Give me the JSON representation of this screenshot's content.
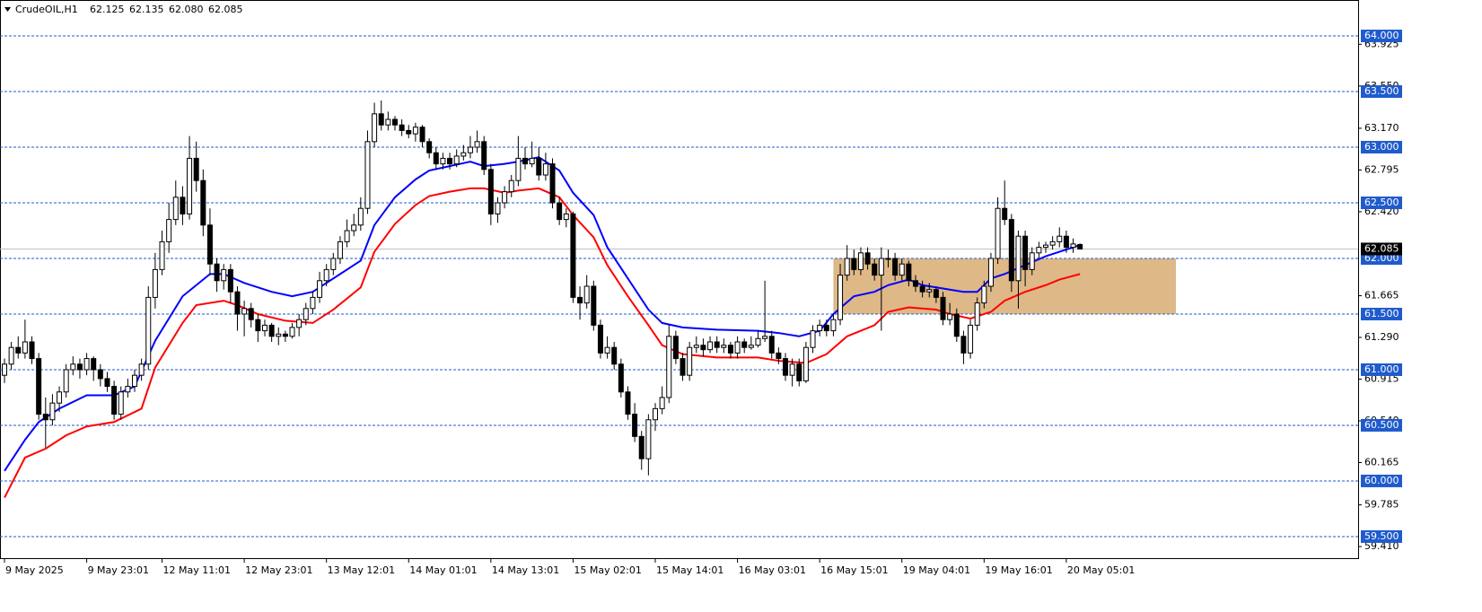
{
  "chart_data": {
    "type": "candlestick",
    "title": "CrudeOIL,H1",
    "title_values": [
      "62.125",
      "62.135",
      "62.080",
      "62.085"
    ],
    "up_color": "#ffffff",
    "down_color": "#000000",
    "candles": [
      [
        60.95,
        61.1,
        60.88,
        61.05
      ],
      [
        61.05,
        61.25,
        61.0,
        61.2
      ],
      [
        61.2,
        61.3,
        61.1,
        61.15
      ],
      [
        61.15,
        61.45,
        61.1,
        61.25
      ],
      [
        61.25,
        61.3,
        61.05,
        61.1
      ],
      [
        61.1,
        61.15,
        60.55,
        60.6
      ],
      [
        60.6,
        60.75,
        60.3,
        60.55
      ],
      [
        60.55,
        60.78,
        60.5,
        60.7
      ],
      [
        60.7,
        60.85,
        60.62,
        60.8
      ],
      [
        60.8,
        61.05,
        60.75,
        61.0
      ],
      [
        61.0,
        61.12,
        60.95,
        61.05
      ],
      [
        61.05,
        61.1,
        60.92,
        61.0
      ],
      [
        61.0,
        61.15,
        60.95,
        61.1
      ],
      [
        61.1,
        61.12,
        60.9,
        61.0
      ],
      [
        61.0,
        61.05,
        60.85,
        60.92
      ],
      [
        60.92,
        60.98,
        60.8,
        60.85
      ],
      [
        60.85,
        60.9,
        60.55,
        60.6
      ],
      [
        60.6,
        60.85,
        60.55,
        60.8
      ],
      [
        60.8,
        60.92,
        60.75,
        60.85
      ],
      [
        60.85,
        61.0,
        60.8,
        60.95
      ],
      [
        60.95,
        61.1,
        60.9,
        61.05
      ],
      [
        61.05,
        61.75,
        61.0,
        61.65
      ],
      [
        61.65,
        62.05,
        61.55,
        61.9
      ],
      [
        61.9,
        62.25,
        61.85,
        62.15
      ],
      [
        62.15,
        62.5,
        62.05,
        62.35
      ],
      [
        62.35,
        62.7,
        62.3,
        62.55
      ],
      [
        62.55,
        62.65,
        62.3,
        62.4
      ],
      [
        62.4,
        63.1,
        62.35,
        62.9
      ],
      [
        62.9,
        63.05,
        62.6,
        62.7
      ],
      [
        62.7,
        62.8,
        62.2,
        62.3
      ],
      [
        62.3,
        62.45,
        61.85,
        61.95
      ],
      [
        61.95,
        62.0,
        61.7,
        61.8
      ],
      [
        61.8,
        61.95,
        61.72,
        61.9
      ],
      [
        61.9,
        61.95,
        61.6,
        61.7
      ],
      [
        61.7,
        61.75,
        61.35,
        61.5
      ],
      [
        61.5,
        61.62,
        61.3,
        61.55
      ],
      [
        61.55,
        61.6,
        61.38,
        61.45
      ],
      [
        61.45,
        61.5,
        61.25,
        61.35
      ],
      [
        61.35,
        61.45,
        61.3,
        61.4
      ],
      [
        61.4,
        61.42,
        61.25,
        61.3
      ],
      [
        61.3,
        61.38,
        61.22,
        61.32
      ],
      [
        61.32,
        61.35,
        61.25,
        61.3
      ],
      [
        61.3,
        61.42,
        61.28,
        61.38
      ],
      [
        61.38,
        61.5,
        61.3,
        61.45
      ],
      [
        61.45,
        61.6,
        61.4,
        61.55
      ],
      [
        61.55,
        61.7,
        61.5,
        61.65
      ],
      [
        61.65,
        61.88,
        61.6,
        61.8
      ],
      [
        61.8,
        61.95,
        61.75,
        61.9
      ],
      [
        61.9,
        62.05,
        61.85,
        62.0
      ],
      [
        62.0,
        62.2,
        61.95,
        62.15
      ],
      [
        62.15,
        62.35,
        62.1,
        62.25
      ],
      [
        62.25,
        62.4,
        62.2,
        62.3
      ],
      [
        62.3,
        62.55,
        62.25,
        62.45
      ],
      [
        62.45,
        63.15,
        62.4,
        63.05
      ],
      [
        63.05,
        63.4,
        63.0,
        63.3
      ],
      [
        63.3,
        63.42,
        63.15,
        63.2
      ],
      [
        63.2,
        63.32,
        63.15,
        63.25
      ],
      [
        63.25,
        63.28,
        63.15,
        63.2
      ],
      [
        63.2,
        63.25,
        63.1,
        63.15
      ],
      [
        63.15,
        63.2,
        63.08,
        63.12
      ],
      [
        63.12,
        63.22,
        63.05,
        63.18
      ],
      [
        63.18,
        63.2,
        63.0,
        63.05
      ],
      [
        63.05,
        63.08,
        62.9,
        62.95
      ],
      [
        62.95,
        63.0,
        62.8,
        62.85
      ],
      [
        62.85,
        62.95,
        62.8,
        62.9
      ],
      [
        62.9,
        62.95,
        62.8,
        62.85
      ],
      [
        62.85,
        62.98,
        62.82,
        62.92
      ],
      [
        62.92,
        63.02,
        62.88,
        62.95
      ],
      [
        62.95,
        63.1,
        62.9,
        63.0
      ],
      [
        63.0,
        63.15,
        62.95,
        63.05
      ],
      [
        63.05,
        63.1,
        62.75,
        62.8
      ],
      [
        62.8,
        62.85,
        62.3,
        62.4
      ],
      [
        62.4,
        62.55,
        62.32,
        62.5
      ],
      [
        62.5,
        62.65,
        62.45,
        62.6
      ],
      [
        62.6,
        62.75,
        62.55,
        62.7
      ],
      [
        62.7,
        63.1,
        62.65,
        62.9
      ],
      [
        62.9,
        63.0,
        62.8,
        62.85
      ],
      [
        62.85,
        63.05,
        62.82,
        62.9
      ],
      [
        62.9,
        63.0,
        62.7,
        62.75
      ],
      [
        62.75,
        62.95,
        62.7,
        62.85
      ],
      [
        62.85,
        62.9,
        62.45,
        62.5
      ],
      [
        62.5,
        62.55,
        62.3,
        62.35
      ],
      [
        62.35,
        62.45,
        62.28,
        62.4
      ],
      [
        62.4,
        62.42,
        61.6,
        61.65
      ],
      [
        61.65,
        61.75,
        61.45,
        61.6
      ],
      [
        61.6,
        61.85,
        61.55,
        61.75
      ],
      [
        61.75,
        61.8,
        61.35,
        61.4
      ],
      [
        61.4,
        61.45,
        61.1,
        61.15
      ],
      [
        61.15,
        61.3,
        61.1,
        61.2
      ],
      [
        61.2,
        61.25,
        61.0,
        61.05
      ],
      [
        61.05,
        61.1,
        60.75,
        60.8
      ],
      [
        60.8,
        60.85,
        60.55,
        60.6
      ],
      [
        60.6,
        60.7,
        60.35,
        60.4
      ],
      [
        60.4,
        60.45,
        60.1,
        60.2
      ],
      [
        60.2,
        60.6,
        60.05,
        60.55
      ],
      [
        60.55,
        60.7,
        60.45,
        60.65
      ],
      [
        60.65,
        60.85,
        60.6,
        60.75
      ],
      [
        60.75,
        61.4,
        60.7,
        61.3
      ],
      [
        61.3,
        61.35,
        61.05,
        61.1
      ],
      [
        61.1,
        61.15,
        60.9,
        60.95
      ],
      [
        60.95,
        61.25,
        60.9,
        61.2
      ],
      [
        61.2,
        61.3,
        61.15,
        61.22
      ],
      [
        61.22,
        61.28,
        61.12,
        61.18
      ],
      [
        61.18,
        61.3,
        61.15,
        61.25
      ],
      [
        61.25,
        61.3,
        61.15,
        61.2
      ],
      [
        61.2,
        61.28,
        61.15,
        61.22
      ],
      [
        61.22,
        61.25,
        61.1,
        61.15
      ],
      [
        61.15,
        61.3,
        61.1,
        61.25
      ],
      [
        61.25,
        61.28,
        61.15,
        61.2
      ],
      [
        61.2,
        61.3,
        61.18,
        61.22
      ],
      [
        61.22,
        61.35,
        61.2,
        61.28
      ],
      [
        61.28,
        61.8,
        61.25,
        61.3
      ],
      [
        61.3,
        61.35,
        61.1,
        61.15
      ],
      [
        61.15,
        61.2,
        61.05,
        61.1
      ],
      [
        61.1,
        61.15,
        60.9,
        60.95
      ],
      [
        60.95,
        61.1,
        60.85,
        61.05
      ],
      [
        61.05,
        61.1,
        60.85,
        60.9
      ],
      [
        60.9,
        61.25,
        60.88,
        61.2
      ],
      [
        61.2,
        61.4,
        61.15,
        61.35
      ],
      [
        61.35,
        61.45,
        61.3,
        61.4
      ],
      [
        61.4,
        61.45,
        61.3,
        61.35
      ],
      [
        61.35,
        61.5,
        61.3,
        61.45
      ],
      [
        61.45,
        61.95,
        61.4,
        61.85
      ],
      [
        61.85,
        62.12,
        61.8,
        62.0
      ],
      [
        62.0,
        62.08,
        61.85,
        61.9
      ],
      [
        61.9,
        62.1,
        61.85,
        62.05
      ],
      [
        62.05,
        62.1,
        61.9,
        61.95
      ],
      [
        61.95,
        62.0,
        61.8,
        61.85
      ],
      [
        61.85,
        62.1,
        61.35,
        62.0
      ],
      [
        62.0,
        62.08,
        61.92,
        62.0
      ],
      [
        62.0,
        62.05,
        61.8,
        61.85
      ],
      [
        61.85,
        62.0,
        61.8,
        61.95
      ],
      [
        61.95,
        61.98,
        61.75,
        61.8
      ],
      [
        61.8,
        61.85,
        61.7,
        61.75
      ],
      [
        61.75,
        61.8,
        61.65,
        61.7
      ],
      [
        61.7,
        61.78,
        61.65,
        61.72
      ],
      [
        61.72,
        61.75,
        61.6,
        61.65
      ],
      [
        61.65,
        61.7,
        61.4,
        61.45
      ],
      [
        61.45,
        61.6,
        61.4,
        61.5
      ],
      [
        61.5,
        61.55,
        61.25,
        61.3
      ],
      [
        61.3,
        61.35,
        61.05,
        61.15
      ],
      [
        61.15,
        61.45,
        61.1,
        61.4
      ],
      [
        61.4,
        61.65,
        61.35,
        61.6
      ],
      [
        61.6,
        61.8,
        61.55,
        61.75
      ],
      [
        61.75,
        62.05,
        61.7,
        62.0
      ],
      [
        62.0,
        62.55,
        61.95,
        62.45
      ],
      [
        62.45,
        62.7,
        62.3,
        62.35
      ],
      [
        62.35,
        62.4,
        61.7,
        61.8
      ],
      [
        61.8,
        62.25,
        61.55,
        62.2
      ],
      [
        62.2,
        62.25,
        61.75,
        61.9
      ],
      [
        61.9,
        62.1,
        61.85,
        62.05
      ],
      [
        62.05,
        62.15,
        62.0,
        62.1
      ],
      [
        62.1,
        62.15,
        62.05,
        62.12
      ],
      [
        62.12,
        62.2,
        62.08,
        62.15
      ],
      [
        62.15,
        62.28,
        62.1,
        62.2
      ],
      [
        62.2,
        62.25,
        62.05,
        62.1
      ],
      [
        62.1,
        62.18,
        62.05,
        62.13
      ],
      [
        62.125,
        62.135,
        62.08,
        62.085
      ]
    ],
    "overlays": [
      {
        "color": "#0000ff",
        "x": [
          0,
          3,
          5,
          8,
          12,
          16,
          19,
          22,
          26,
          30,
          32,
          35,
          39,
          42,
          45,
          49,
          52,
          54,
          57,
          60,
          62,
          65,
          68,
          70,
          73,
          75,
          78,
          81,
          83,
          86,
          88,
          91,
          94,
          96,
          99,
          104,
          110,
          113,
          116,
          119,
          121,
          124,
          127,
          129,
          132,
          134,
          137,
          140,
          142,
          144,
          146,
          149,
          152,
          154,
          157
        ],
        "values": [
          60.09,
          60.37,
          60.53,
          60.65,
          60.77,
          60.77,
          60.85,
          61.26,
          61.66,
          61.86,
          61.86,
          61.78,
          61.7,
          61.66,
          61.7,
          61.86,
          61.98,
          62.3,
          62.55,
          62.71,
          62.79,
          62.83,
          62.87,
          62.83,
          62.85,
          62.87,
          62.91,
          62.79,
          62.59,
          62.39,
          62.1,
          61.82,
          61.54,
          61.42,
          61.38,
          61.36,
          61.35,
          61.33,
          61.3,
          61.35,
          61.5,
          61.66,
          61.7,
          61.76,
          61.81,
          61.76,
          61.73,
          61.7,
          61.7,
          61.82,
          61.86,
          61.94,
          62.02,
          62.06,
          62.12
        ]
      },
      {
        "color": "#ff0000",
        "x": [
          0,
          3,
          6,
          9,
          12,
          16,
          20,
          22,
          26,
          28,
          32,
          34,
          37,
          41,
          45,
          48,
          52,
          54,
          57,
          60,
          62,
          65,
          68,
          70,
          73,
          75,
          78,
          81,
          83,
          86,
          88,
          91,
          94,
          96,
          99,
          104,
          110,
          113,
          117,
          120,
          123,
          127,
          129,
          132,
          136,
          138,
          141,
          144,
          146,
          149,
          152,
          154,
          157
        ],
        "values": [
          59.85,
          60.21,
          60.29,
          60.41,
          60.49,
          60.53,
          60.65,
          61.02,
          61.42,
          61.58,
          61.62,
          61.58,
          61.5,
          61.44,
          61.42,
          61.54,
          61.74,
          62.06,
          62.31,
          62.48,
          62.56,
          62.6,
          62.63,
          62.63,
          62.59,
          62.61,
          62.63,
          62.55,
          62.39,
          62.19,
          61.94,
          61.66,
          61.4,
          61.22,
          61.14,
          61.11,
          61.11,
          61.08,
          61.06,
          61.14,
          61.3,
          61.4,
          61.52,
          61.56,
          61.54,
          61.5,
          61.46,
          61.52,
          61.62,
          61.7,
          61.76,
          61.81,
          61.86
        ]
      }
    ],
    "zone": {
      "x": [
        121,
        171
      ],
      "y": [
        61.5,
        62.0
      ],
      "color": "#deb887"
    },
    "levels": {
      "color": "#1f5bcc",
      "values": [
        {
          "value": 64,
          "label": "64.000"
        },
        {
          "value": 63.5,
          "label": "63.500"
        },
        {
          "value": 63,
          "label": "63.000"
        },
        {
          "value": 62.5,
          "label": "62.500"
        },
        {
          "value": 62,
          "label": "62.000"
        },
        {
          "value": 61.5,
          "label": "61.500"
        },
        {
          "value": 61,
          "label": "61.000"
        },
        {
          "value": 60.5,
          "label": "60.500"
        },
        {
          "value": 60,
          "label": "60.000"
        },
        {
          "value": 59.5,
          "label": "59.500"
        }
      ]
    },
    "current": {
      "value": 62.085,
      "label": "62.085"
    },
    "xlim": [
      -0.655,
      197.6
    ],
    "xticks": [
      {
        "value": 0,
        "label": "9 May 2025"
      },
      {
        "value": 12,
        "label": "9 May 23:01"
      },
      {
        "value": 23,
        "label": "12 May 11:01"
      },
      {
        "value": 35,
        "label": "12 May 23:01"
      },
      {
        "value": 47,
        "label": "13 May 12:01"
      },
      {
        "value": 59,
        "label": "14 May 01:01"
      },
      {
        "value": 71,
        "label": "14 May 13:01"
      },
      {
        "value": 83,
        "label": "15 May 02:01"
      },
      {
        "value": 95,
        "label": "15 May 14:01"
      },
      {
        "value": 107,
        "label": "16 May 03:01"
      },
      {
        "value": 119,
        "label": "16 May 15:01"
      },
      {
        "value": 131,
        "label": "19 May 04:01"
      },
      {
        "value": 143,
        "label": "19 May 16:01"
      },
      {
        "value": 155,
        "label": "20 May 05:01"
      }
    ],
    "ylim": [
      59.306,
      64.323
    ],
    "yticks": [
      63.925,
      {
        "value": 63.55,
        "label": "63.550"
      },
      {
        "value": 63.17,
        "label": "63.170"
      },
      62.795,
      {
        "value": 62.42,
        "label": "62.420"
      },
      61.665,
      {
        "value": 61.29,
        "label": "61.290"
      },
      60.915,
      {
        "value": 60.54,
        "label": "60.540"
      },
      60.165,
      59.785,
      {
        "value": 59.41,
        "label": "59.410"
      }
    ]
  }
}
